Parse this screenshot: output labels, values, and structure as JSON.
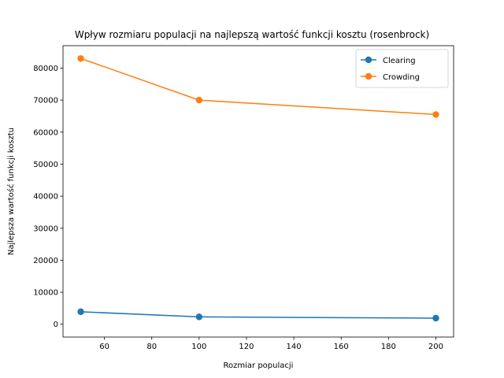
{
  "chart_data": {
    "type": "line",
    "title": "Wpływ rozmiaru populacji na najlepszą wartość funkcji kosztu (rosenbrock)",
    "xlabel": "Rozmiar populacji",
    "ylabel": "Najlepsza wartość funkcji kosztu",
    "x": [
      50,
      100,
      200
    ],
    "xlim": [
      42.5,
      207.5
    ],
    "ylim": [
      -4000,
      87000
    ],
    "x_ticks": [
      60,
      80,
      100,
      120,
      140,
      160,
      180,
      200
    ],
    "y_ticks": [
      0,
      10000,
      20000,
      30000,
      40000,
      50000,
      60000,
      70000,
      80000
    ],
    "grid": false,
    "legend_position": "top-right",
    "series": [
      {
        "name": "Clearing",
        "color": "#1f77b4",
        "values": [
          3900,
          2300,
          1900
        ]
      },
      {
        "name": "Crowding",
        "color": "#ff7f0e",
        "values": [
          83000,
          70000,
          65500
        ]
      }
    ]
  }
}
